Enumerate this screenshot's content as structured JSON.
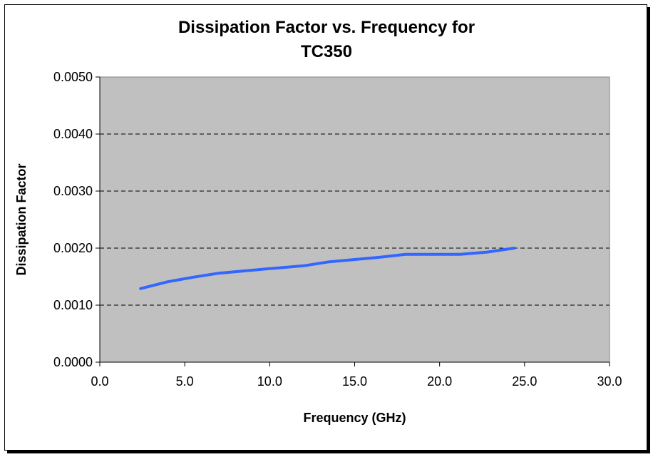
{
  "chart_data": {
    "type": "line",
    "title": "Dissipation Factor vs. Frequency for TC350",
    "title_lines": [
      "Dissipation Factor vs. Frequency for",
      "TC350"
    ],
    "xlabel": "Frequency (GHz)",
    "ylabel": "Dissipation Factor",
    "xlim": [
      0,
      30
    ],
    "ylim": [
      0,
      0.005
    ],
    "x_ticks": [
      "0.0",
      "5.0",
      "10.0",
      "15.0",
      "20.0",
      "25.0",
      "30.0"
    ],
    "y_ticks": [
      "0.0000",
      "0.0010",
      "0.0020",
      "0.0030",
      "0.0040",
      "0.0050"
    ],
    "grid": "horizontal dashed",
    "plot_background": "#c0c0c0",
    "series": [
      {
        "color": "#3366ff",
        "x": [
          2.4,
          4.0,
          5.5,
          7.0,
          8.5,
          10.0,
          12.0,
          13.5,
          15.0,
          16.5,
          18.0,
          19.5,
          21.2,
          22.8,
          24.4
        ],
        "y": [
          0.00129,
          0.00141,
          0.00149,
          0.00156,
          0.0016,
          0.00164,
          0.00169,
          0.00176,
          0.0018,
          0.00184,
          0.00189,
          0.00189,
          0.00189,
          0.00193,
          0.002
        ]
      }
    ]
  }
}
